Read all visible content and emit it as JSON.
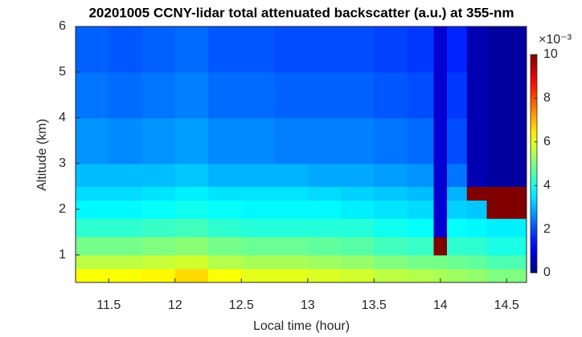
{
  "chart_data": {
    "type": "heatmap",
    "title": "20201005 CCNY-lidar total attenuated backscatter (a.u.) at 355-nm",
    "x_label": "Local time (hour)",
    "y_label": "Altitude (km)",
    "colorbar_label": "×10⁻³",
    "colormap": "jet",
    "x": [
      11.25,
      11.5,
      11.75,
      12,
      12.25,
      12.5,
      12.75,
      13,
      13.25,
      13.5,
      13.75,
      13.95,
      14.05,
      14.2,
      14.35,
      14.65
    ],
    "y": [
      0.4,
      0.7,
      1.0,
      1.4,
      1.8,
      2.2,
      2.5,
      3,
      4,
      5,
      6
    ],
    "values": [
      [
        6.2,
        6.2,
        6.3,
        6.6,
        6.2,
        6.0,
        6.0,
        5.9,
        5.8,
        5.6,
        5.5,
        5.4,
        5.3,
        5.2,
        5.0
      ],
      [
        5.6,
        5.6,
        5.7,
        5.8,
        5.5,
        5.4,
        5.4,
        5.3,
        5.2,
        5.0,
        4.9,
        4.9,
        4.8,
        4.7,
        4.5
      ],
      [
        4.9,
        4.9,
        5.0,
        5.1,
        4.9,
        4.8,
        4.8,
        4.7,
        4.6,
        4.4,
        4.3,
        10,
        4.2,
        4.2,
        4.0
      ],
      [
        4.2,
        4.2,
        4.3,
        4.4,
        4.2,
        4.1,
        4.1,
        4.1,
        4.1,
        3.9,
        3.8,
        0.8,
        3.8,
        3.7,
        3.6
      ],
      [
        3.7,
        3.7,
        3.8,
        3.9,
        3.8,
        3.7,
        3.7,
        3.7,
        3.6,
        3.5,
        3.4,
        0.8,
        3.3,
        3.2,
        10
      ],
      [
        3.4,
        3.4,
        3.5,
        3.6,
        3.5,
        3.5,
        3.5,
        3.4,
        3.3,
        3.2,
        3.1,
        0.8,
        3.0,
        10,
        10
      ],
      [
        3.1,
        3.1,
        3.1,
        3.2,
        3.0,
        3.0,
        3.0,
        2.9,
        2.9,
        2.8,
        2.7,
        0.8,
        2.4,
        0.5,
        0.3
      ],
      [
        2.7,
        2.6,
        2.7,
        2.8,
        2.6,
        2.6,
        2.5,
        2.5,
        2.5,
        2.4,
        2.3,
        0.8,
        2.0,
        0.5,
        0.3
      ],
      [
        2.4,
        2.3,
        2.4,
        2.5,
        2.3,
        2.3,
        2.2,
        2.2,
        2.2,
        2.1,
        2.0,
        0.8,
        1.8,
        0.5,
        0.3
      ],
      [
        2.2,
        2.1,
        2.2,
        2.3,
        2.1,
        2.1,
        2.0,
        2.0,
        2.0,
        1.9,
        1.8,
        0.8,
        1.6,
        0.5,
        0.3
      ]
    ],
    "xlim": [
      11.25,
      14.65
    ],
    "xticks": [
      11.5,
      12,
      12.5,
      13,
      13.5,
      14,
      14.5
    ],
    "ylim": [
      0.4,
      6
    ],
    "yticks": [
      1,
      2,
      3,
      4,
      5,
      6
    ],
    "clim": [
      0,
      10
    ],
    "cticks": [
      0,
      2,
      4,
      6,
      8,
      10
    ]
  }
}
